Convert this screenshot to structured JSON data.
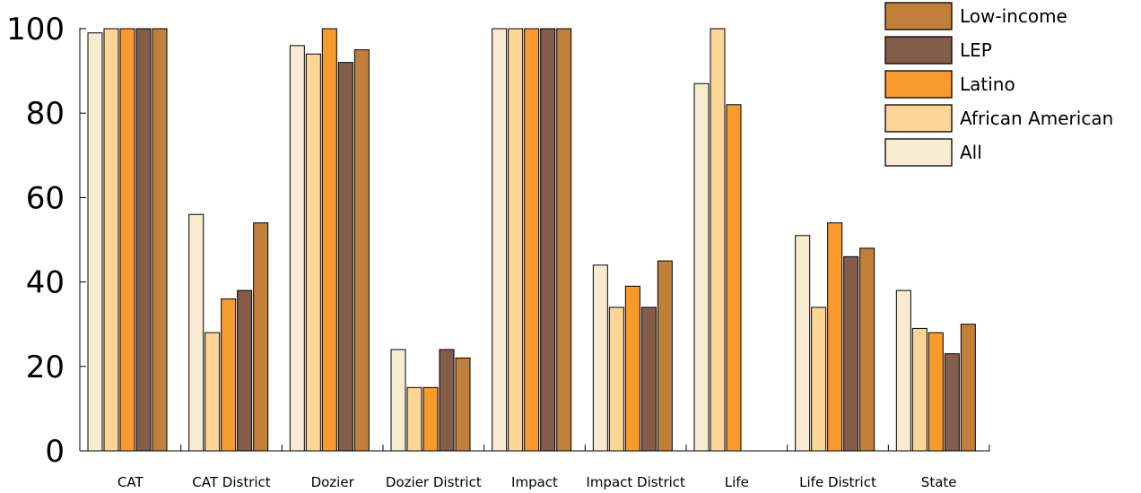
{
  "chart_data": {
    "type": "bar",
    "title": "",
    "xlabel": "",
    "ylabel": "",
    "ylim": [
      0,
      100
    ],
    "yticks": [
      0,
      20,
      40,
      60,
      80,
      100
    ],
    "grid": false,
    "legend_position": "top-right",
    "categories": [
      "CAT",
      "CAT District",
      "Dozier",
      "Dozier District",
      "Impact",
      "Impact District",
      "Life",
      "Life District",
      "State"
    ],
    "series": [
      {
        "name": "All",
        "color": "#f7ecd1",
        "values": [
          99,
          56,
          96,
          24,
          100,
          44,
          87,
          51,
          38
        ]
      },
      {
        "name": "African American",
        "color": "#fdd597",
        "values": [
          100,
          28,
          94,
          15,
          100,
          34,
          100,
          34,
          29
        ]
      },
      {
        "name": "Latino",
        "color": "#f99a2d",
        "values": [
          100,
          36,
          100,
          15,
          100,
          39,
          82,
          54,
          28
        ]
      },
      {
        "name": "LEP",
        "color": "#835c4a",
        "values": [
          100,
          38,
          92,
          24,
          100,
          34,
          null,
          46,
          23
        ]
      },
      {
        "name": "Low-income",
        "color": "#c0803a",
        "values": [
          100,
          54,
          95,
          22,
          100,
          45,
          null,
          48,
          30
        ]
      }
    ],
    "legend_order": [
      "Low-income",
      "LEP",
      "Latino",
      "African American",
      "All"
    ]
  }
}
